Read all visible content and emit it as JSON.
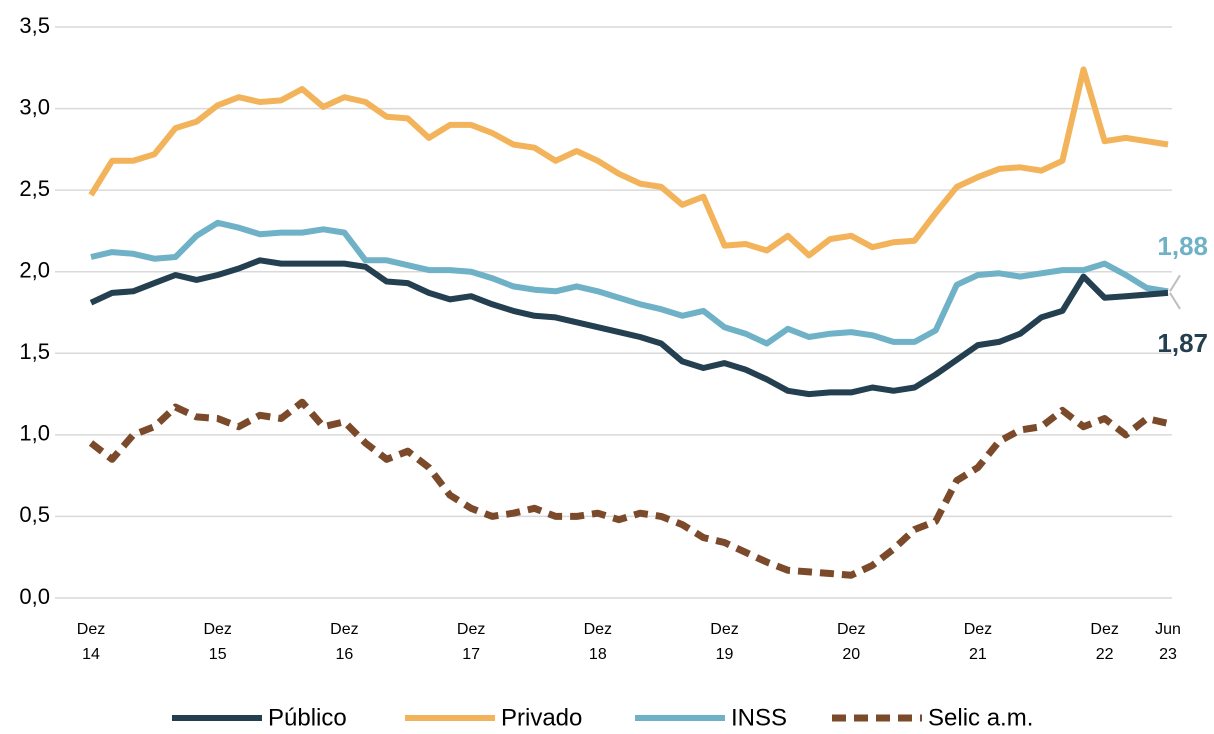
{
  "chart_data": {
    "type": "line",
    "categories": [
      "Dez 14",
      null,
      null,
      null,
      null,
      null,
      "Dez 15",
      null,
      null,
      null,
      null,
      null,
      "Dez 16",
      null,
      null,
      null,
      null,
      null,
      "Dez 17",
      null,
      null,
      null,
      null,
      null,
      "Dez 18",
      null,
      null,
      null,
      null,
      null,
      "Dez 19",
      null,
      null,
      null,
      null,
      null,
      "Dez 20",
      null,
      null,
      null,
      null,
      null,
      "Dez 21",
      null,
      null,
      null,
      null,
      null,
      "Dez 22",
      null,
      null,
      "Jun 23"
    ],
    "series": [
      {
        "name": "Público",
        "color": "#243f4f",
        "dash": false,
        "annotation": "1,87",
        "values": [
          1.81,
          1.87,
          1.88,
          1.93,
          1.98,
          1.95,
          1.98,
          2.02,
          2.07,
          2.05,
          2.05,
          2.05,
          2.05,
          2.03,
          1.94,
          1.93,
          1.87,
          1.83,
          1.85,
          1.8,
          1.76,
          1.73,
          1.72,
          1.69,
          1.66,
          1.63,
          1.6,
          1.56,
          1.45,
          1.41,
          1.44,
          1.4,
          1.34,
          1.27,
          1.25,
          1.26,
          1.26,
          1.29,
          1.27,
          1.29,
          1.37,
          1.46,
          1.55,
          1.57,
          1.62,
          1.72,
          1.76,
          1.97,
          1.84,
          1.85,
          1.86,
          1.87
        ]
      },
      {
        "name": "Privado",
        "color": "#f2b35a",
        "dash": false,
        "values": [
          2.47,
          2.68,
          2.68,
          2.72,
          2.88,
          2.92,
          3.02,
          3.07,
          3.04,
          3.05,
          3.12,
          3.01,
          3.07,
          3.04,
          2.95,
          2.94,
          2.82,
          2.9,
          2.9,
          2.85,
          2.78,
          2.76,
          2.68,
          2.74,
          2.68,
          2.6,
          2.54,
          2.52,
          2.41,
          2.46,
          2.16,
          2.17,
          2.13,
          2.22,
          2.1,
          2.2,
          2.22,
          2.15,
          2.18,
          2.19,
          2.36,
          2.52,
          2.58,
          2.63,
          2.64,
          2.62,
          2.68,
          3.24,
          2.8,
          2.82,
          2.8,
          2.78
        ]
      },
      {
        "name": "INSS",
        "color": "#6fb1c6",
        "dash": false,
        "annotation": "1,88",
        "values": [
          2.09,
          2.12,
          2.11,
          2.08,
          2.09,
          2.22,
          2.3,
          2.27,
          2.23,
          2.24,
          2.24,
          2.26,
          2.24,
          2.07,
          2.07,
          2.04,
          2.01,
          2.01,
          2.0,
          1.96,
          1.91,
          1.89,
          1.88,
          1.91,
          1.88,
          1.84,
          1.8,
          1.77,
          1.73,
          1.76,
          1.66,
          1.62,
          1.56,
          1.65,
          1.6,
          1.62,
          1.63,
          1.61,
          1.57,
          1.57,
          1.64,
          1.92,
          1.98,
          1.99,
          1.97,
          1.99,
          2.01,
          2.01,
          2.05,
          1.98,
          1.9,
          1.88
        ]
      },
      {
        "name": "Selic a.m.",
        "color": "#7a4a2a",
        "dash": true,
        "values": [
          0.95,
          0.85,
          1.0,
          1.05,
          1.17,
          1.11,
          1.1,
          1.05,
          1.12,
          1.1,
          1.2,
          1.05,
          1.08,
          0.95,
          0.85,
          0.9,
          0.8,
          0.63,
          0.55,
          0.5,
          0.52,
          0.55,
          0.5,
          0.5,
          0.52,
          0.48,
          0.52,
          0.5,
          0.45,
          0.37,
          0.34,
          0.28,
          0.22,
          0.17,
          0.16,
          0.15,
          0.14,
          0.2,
          0.3,
          0.42,
          0.47,
          0.72,
          0.8,
          0.96,
          1.03,
          1.05,
          1.15,
          1.05,
          1.1,
          1.0,
          1.1,
          1.07
        ]
      }
    ],
    "ylim": [
      0,
      3.5
    ],
    "yticks": [
      {
        "value": 0,
        "label": "0,0"
      },
      {
        "value": 0.5,
        "label": "0,5"
      },
      {
        "value": 1,
        "label": "1,0"
      },
      {
        "value": 1.5,
        "label": "1,5"
      },
      {
        "value": 2,
        "label": "2,0"
      },
      {
        "value": 2.5,
        "label": "2,5"
      },
      {
        "value": 3,
        "label": "3,0"
      },
      {
        "value": 3.5,
        "label": "3,5"
      }
    ],
    "grid": true,
    "legend": "bottom"
  }
}
